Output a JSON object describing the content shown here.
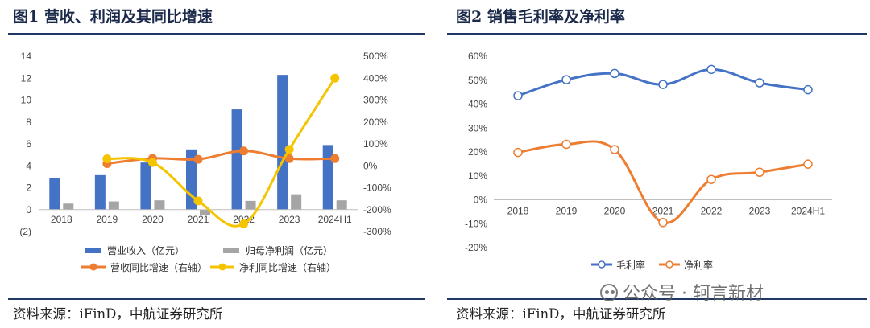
{
  "figures": {
    "left": {
      "title": "图1  营收、利润及其同比增速",
      "source": "资料来源：iFinD，中航证券研究所"
    },
    "right": {
      "title": "图2  销售毛利率及净利率",
      "source": "资料来源：iFinD，中航证券研究所"
    }
  },
  "watermark": {
    "text": "公众号 · 轲言新材",
    "icon": "wechat-icon"
  },
  "chart_data": [
    {
      "type": "bar",
      "categories": [
        "2018",
        "2019",
        "2020",
        "2021",
        "2022",
        "2023",
        "2024H1"
      ],
      "y_left": {
        "ylim": [
          -2,
          14
        ],
        "ticks": [
          14,
          12,
          10,
          8,
          6,
          4,
          2,
          0
        ],
        "neg_tick_label": "(2)"
      },
      "y_right": {
        "ylim": [
          -300,
          500
        ],
        "ticks": [
          "500%",
          "400%",
          "300%",
          "200%",
          "100%",
          "0%",
          "-100%",
          "-200%",
          "-300%"
        ]
      },
      "series": [
        {
          "name": "营业收入（亿元）",
          "type": "bar",
          "axis": "left",
          "color": "#4472c4",
          "values": [
            2.85,
            3.15,
            4.3,
            5.5,
            9.15,
            12.3,
            5.9
          ]
        },
        {
          "name": "归母净利润（亿元）",
          "type": "bar",
          "axis": "left",
          "color": "#a5a5a5",
          "values": [
            0.55,
            0.75,
            0.85,
            -0.5,
            0.8,
            1.4,
            0.85
          ]
        },
        {
          "name": "营收同比增速（右轴）",
          "type": "line",
          "axis": "right",
          "color": "#ed7d31",
          "values": [
            null,
            10,
            34,
            30,
            68,
            33,
            33
          ]
        },
        {
          "name": "净利同比增速（右轴）",
          "type": "line",
          "axis": "right",
          "color": "#f5c400",
          "values": [
            null,
            32,
            15,
            -160,
            -265,
            75,
            400
          ]
        }
      ],
      "legend_position": "bottom"
    },
    {
      "type": "line",
      "categories": [
        "2018",
        "2019",
        "2020",
        "2021",
        "2022",
        "2023",
        "2024H1"
      ],
      "ylim": [
        -20,
        60
      ],
      "y_ticks": [
        "60%",
        "50%",
        "40%",
        "30%",
        "20%",
        "10%",
        "0%",
        "-10%",
        "-20%"
      ],
      "series": [
        {
          "name": "毛利率",
          "color": "#4472c4",
          "values": [
            43.5,
            50.2,
            52.8,
            48.2,
            54.5,
            48.9,
            46.0
          ]
        },
        {
          "name": "净利率",
          "color": "#ed7d31",
          "values": [
            19.8,
            23.2,
            21.0,
            -9.5,
            8.5,
            11.5,
            14.9
          ]
        }
      ],
      "legend_position": "bottom"
    }
  ]
}
